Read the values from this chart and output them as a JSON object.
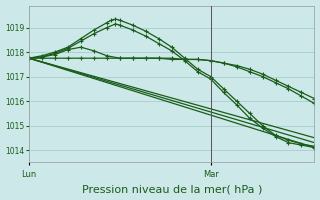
{
  "bg_color": "#cce8e8",
  "grid_color": "#aacccc",
  "line_color": "#1a5c1a",
  "xlabel": "Pression niveau de la mer( hPa )",
  "xlabel_fontsize": 8,
  "ylim": [
    1013.5,
    1019.9
  ],
  "yticks": [
    1014,
    1015,
    1016,
    1017,
    1018,
    1019
  ],
  "xtick_labels": [
    "Lun",
    "",
    "Mar"
  ],
  "xtick_positions": [
    0,
    24,
    42
  ],
  "vline_x": 42,
  "total_hours": 66,
  "series": [
    {
      "x": [
        0,
        3,
        6,
        9,
        12,
        15,
        18,
        19,
        20,
        21,
        24,
        27,
        30,
        33,
        36,
        39,
        42,
        45,
        48,
        51,
        54,
        57,
        60,
        63,
        66
      ],
      "y": [
        1017.75,
        1017.85,
        1018.0,
        1018.2,
        1018.55,
        1018.9,
        1019.2,
        1019.3,
        1019.35,
        1019.3,
        1019.1,
        1018.85,
        1018.55,
        1018.2,
        1017.75,
        1017.3,
        1017.0,
        1016.5,
        1016.0,
        1015.5,
        1015.0,
        1014.6,
        1014.4,
        1014.25,
        1014.15
      ],
      "marker": "+"
    },
    {
      "x": [
        0,
        3,
        6,
        9,
        12,
        15,
        18,
        20,
        21,
        24,
        27,
        30,
        33,
        36,
        39,
        42,
        45,
        48,
        51,
        54,
        57,
        60,
        63,
        66
      ],
      "y": [
        1017.75,
        1017.8,
        1017.95,
        1018.15,
        1018.45,
        1018.75,
        1019.0,
        1019.15,
        1019.1,
        1018.9,
        1018.65,
        1018.35,
        1018.05,
        1017.65,
        1017.2,
        1016.9,
        1016.35,
        1015.85,
        1015.3,
        1014.9,
        1014.55,
        1014.3,
        1014.2,
        1014.1
      ],
      "marker": "+"
    },
    {
      "x": [
        0,
        3,
        6,
        9,
        12,
        15,
        18,
        21,
        24,
        27,
        30,
        33,
        36,
        39,
        42,
        45,
        48,
        51,
        54,
        57,
        60,
        63,
        66
      ],
      "y": [
        1017.75,
        1017.8,
        1017.9,
        1018.1,
        1018.2,
        1018.05,
        1017.85,
        1017.75,
        1017.75,
        1017.75,
        1017.75,
        1017.75,
        1017.7,
        1017.7,
        1017.65,
        1017.55,
        1017.4,
        1017.2,
        1017.0,
        1016.75,
        1016.5,
        1016.2,
        1015.9
      ],
      "marker": "+"
    },
    {
      "x": [
        0,
        3,
        6,
        9,
        12,
        15,
        18,
        21,
        24,
        27,
        30,
        33,
        36,
        39,
        42,
        45,
        48,
        51,
        54,
        57,
        60,
        63,
        66
      ],
      "y": [
        1017.75,
        1017.75,
        1017.75,
        1017.75,
        1017.75,
        1017.75,
        1017.75,
        1017.75,
        1017.75,
        1017.75,
        1017.75,
        1017.7,
        1017.7,
        1017.7,
        1017.65,
        1017.55,
        1017.45,
        1017.3,
        1017.1,
        1016.85,
        1016.6,
        1016.35,
        1016.1
      ],
      "marker": "+"
    },
    {
      "x": [
        0,
        66
      ],
      "y": [
        1017.75,
        1014.5
      ],
      "marker": null
    },
    {
      "x": [
        0,
        66
      ],
      "y": [
        1017.75,
        1014.3
      ],
      "marker": null
    },
    {
      "x": [
        0,
        66
      ],
      "y": [
        1017.75,
        1014.1
      ],
      "marker": null
    }
  ]
}
